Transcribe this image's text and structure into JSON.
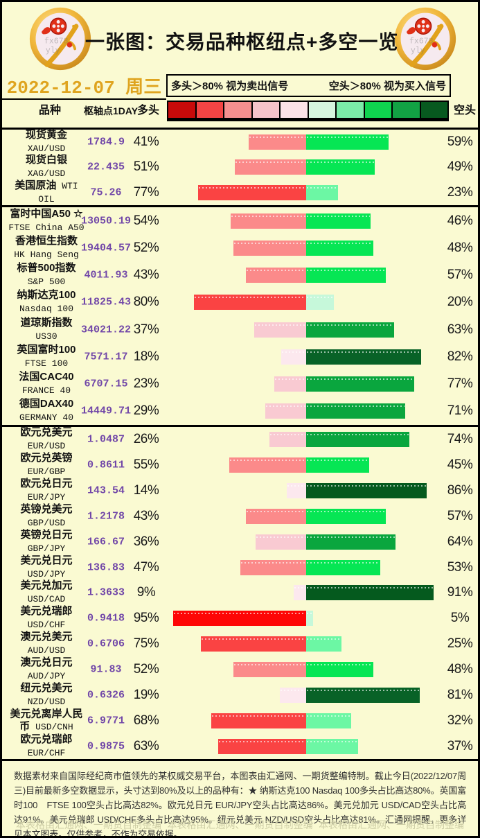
{
  "header": {
    "title": "一张图：交易品种枢纽点+多空一览",
    "date": "2022-12-07 周三",
    "legend_long": "多头＞80% 视为卖出信号",
    "legend_short": "空头＞80% 视为买入信号",
    "col_instrument": "品种",
    "col_pivot": "枢轴点1DAY",
    "col_long": "多头",
    "col_short": "空头"
  },
  "colors": {
    "background": "#FAFAD2",
    "date_gold": "#DFA41F",
    "pivot_purple": "#7147A8",
    "watermark": "#CECEA6",
    "scale": [
      "#C80A0A",
      "#F34444",
      "#F58F8F",
      "#F6C3CA",
      "#FBE2E8",
      "#D6F5DF",
      "#7BEBA8",
      "#0FD34F",
      "#12A244",
      "#07591F"
    ]
  },
  "chart_data": {
    "type": "bar",
    "title": "一张图：交易品种枢纽点+多空一览",
    "note": "diverging long(red,left)/short(green,right) bars, center = 0, scale 2.02px per %",
    "axis_range_pct": [
      -100,
      100
    ],
    "groups": [
      {
        "rows": [
          {
            "name_cn": "现货黄金",
            "name_en": "XAU/USD",
            "pivot": "1784.9",
            "long_pct": 41,
            "short_pct": 59,
            "long_color": "#FB8A8A",
            "short_color": "#06E654"
          },
          {
            "name_cn": "现货白银",
            "name_en": "XAG/USD",
            "pivot": "22.435",
            "long_pct": 51,
            "short_pct": 49,
            "long_color": "#FB8A8A",
            "short_color": "#06E654"
          },
          {
            "name_cn": "美国原油",
            "name_en": "WTI OIL",
            "pivot": "75.26",
            "long_pct": 77,
            "short_pct": 23,
            "long_color": "#FA4343",
            "short_color": "#6CF7A4"
          }
        ]
      },
      {
        "rows": [
          {
            "name_cn": "富时中国A50 ☆",
            "name_en": "FTSE China A50",
            "pivot": "13050.19",
            "long_pct": 54,
            "short_pct": 46,
            "long_color": "#FB8A8A",
            "short_color": "#06E654"
          },
          {
            "name_cn": "香港恒生指数",
            "name_en": "HK Hang Seng",
            "pivot": "19404.57",
            "long_pct": 52,
            "short_pct": 48,
            "long_color": "#FB8A8A",
            "short_color": "#06E654"
          },
          {
            "name_cn": "标普500指数",
            "name_en": "S&P 500",
            "pivot": "4011.93",
            "long_pct": 43,
            "short_pct": 57,
            "long_color": "#FB8A8A",
            "short_color": "#06E654"
          },
          {
            "name_cn": "纳斯达克100",
            "name_en": "Nasdaq 100",
            "pivot": "11825.43",
            "long_pct": 80,
            "short_pct": 20,
            "long_color": "#FA4343",
            "short_color": "#C6F8DA"
          },
          {
            "name_cn": "道琼斯指数",
            "name_en": "US30",
            "pivot": "34021.22",
            "long_pct": 37,
            "short_pct": 63,
            "long_color": "#F9CAD2",
            "short_color": "#0AA63E"
          },
          {
            "name_cn": "英国富时100",
            "name_en": "FTSE 100",
            "pivot": "7571.17",
            "long_pct": 18,
            "short_pct": 82,
            "long_color": "#FCE8EE",
            "short_color": "#086227"
          },
          {
            "name_cn": "法国CAC40",
            "name_en": "FRANCE 40",
            "pivot": "6707.15",
            "long_pct": 23,
            "short_pct": 77,
            "long_color": "#F9CAD2",
            "short_color": "#0AA63E"
          },
          {
            "name_cn": "德国DAX40",
            "name_en": "GERMANY 40",
            "pivot": "14449.71",
            "long_pct": 29,
            "short_pct": 71,
            "long_color": "#F9CAD2",
            "short_color": "#0AA63E"
          }
        ]
      },
      {
        "rows": [
          {
            "name_cn": "欧元兑美元",
            "name_en": "EUR/USD",
            "pivot": "1.0487",
            "long_pct": 26,
            "short_pct": 74,
            "long_color": "#F9CAD2",
            "short_color": "#0AA63E"
          },
          {
            "name_cn": "欧元兑英镑",
            "name_en": "EUR/GBP",
            "pivot": "0.8611",
            "long_pct": 55,
            "short_pct": 45,
            "long_color": "#FB8A8A",
            "short_color": "#06E654"
          },
          {
            "name_cn": "欧元兑日元",
            "name_en": "EUR/JPY",
            "pivot": "143.54",
            "long_pct": 14,
            "short_pct": 86,
            "long_color": "#FCE8EE",
            "short_color": "#055A1E"
          },
          {
            "name_cn": "英镑兑美元",
            "name_en": "GBP/USD",
            "pivot": "1.2178",
            "long_pct": 43,
            "short_pct": 57,
            "long_color": "#FB8A8A",
            "short_color": "#06E654"
          },
          {
            "name_cn": "英镑兑日元",
            "name_en": "GBP/JPY",
            "pivot": "166.67",
            "long_pct": 36,
            "short_pct": 64,
            "long_color": "#F9CAD2",
            "short_color": "#0AA63E"
          },
          {
            "name_cn": "美元兑日元",
            "name_en": "USD/JPY",
            "pivot": "136.83",
            "long_pct": 47,
            "short_pct": 53,
            "long_color": "#FB8A8A",
            "short_color": "#06E654"
          },
          {
            "name_cn": "美元兑加元",
            "name_en": "USD/CAD",
            "pivot": "1.3633",
            "long_pct": 9,
            "short_pct": 91,
            "long_color": "#FCE8EE",
            "short_color": "#055A1E"
          },
          {
            "name_cn": "美元兑瑞郎",
            "name_en": "USD/CHF",
            "pivot": "0.9418",
            "long_pct": 95,
            "short_pct": 5,
            "long_color": "#FE0606",
            "short_color": "#C6F8DA"
          },
          {
            "name_cn": "澳元兑美元",
            "name_en": "AUD/USD",
            "pivot": "0.6706",
            "long_pct": 75,
            "short_pct": 25,
            "long_color": "#FA4343",
            "short_color": "#6CF7A4"
          },
          {
            "name_cn": "澳元兑日元",
            "name_en": "AUD/JPY",
            "pivot": "91.83",
            "long_pct": 52,
            "short_pct": 48,
            "long_color": "#FB8A8A",
            "short_color": "#06E654"
          },
          {
            "name_cn": "纽元兑美元",
            "name_en": "NZD/USD",
            "pivot": "0.6326",
            "long_pct": 19,
            "short_pct": 81,
            "long_color": "#FCE8EE",
            "short_color": "#086227"
          },
          {
            "name_cn": "美元兑离岸人民币",
            "name_en": "USD/CNH",
            "pivot": "6.9771",
            "long_pct": 68,
            "short_pct": 32,
            "long_color": "#FA4343",
            "short_color": "#6CF7A4"
          },
          {
            "name_cn": "欧元兑瑞郎",
            "name_en": "EUR/CHF",
            "pivot": "0.9875",
            "long_pct": 63,
            "short_pct": 37,
            "long_color": "#FA4343",
            "short_color": "#6CF7A4"
          }
        ]
      }
    ]
  },
  "footer": {
    "paragraph": "数据素材来自国际经纪商市值领先的某权威交易平台，本图表由汇通网、一期货整编特制。截止今日(2022/12/07周三)目前最新多空数据显示，头寸达到80%及以上的品种有：★ 纳斯达克100 Nasdaq 100多头占比高达80%。英国富时100　FTSE 100空头占比高达82%。欧元兑日元 EUR/JPY空头占比高达86%。美元兑加元 USD/CAD空头占比高达91%。美元兑瑞郎 USD/CHF多头占比高达95%。纽元兑美元 NZD/USD空头占比高达81%。汇通网提醒，更多详见本文图表。仅供参考，不作为交易依据。",
    "watermarks": [
      "本表格由汇通网、一期货自制整编",
      "本表格由汇通网、一期货自制整编",
      "本表格由汇通网、一期货自制整编"
    ]
  }
}
